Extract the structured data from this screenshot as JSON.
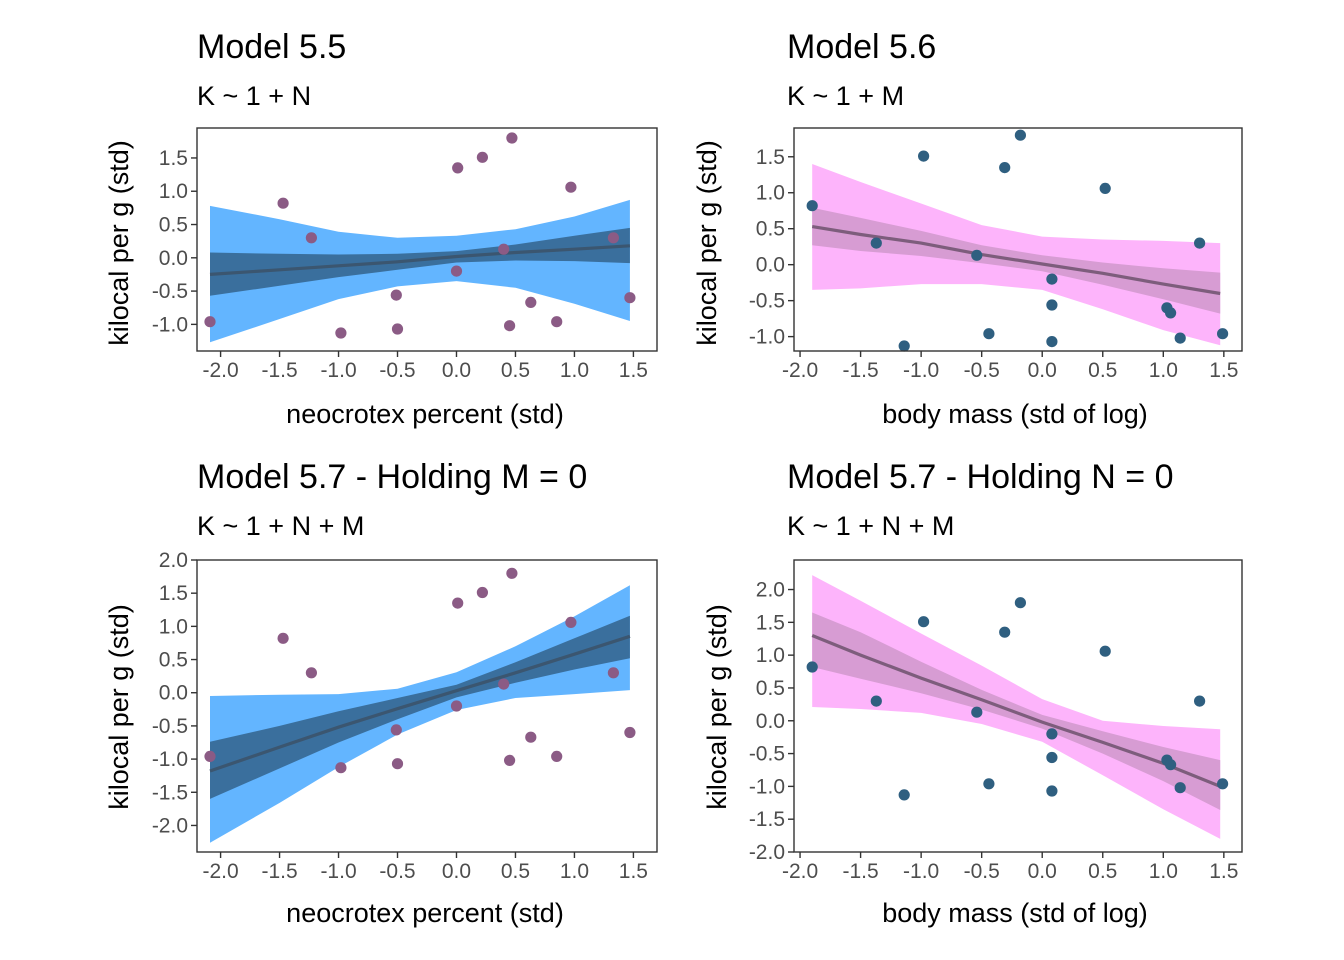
{
  "colors": {
    "blue_outer": "#63b5ff",
    "blue_inner": "#3a6f9d",
    "blue_line": "#3b5670",
    "purple_point": "#8b5b85",
    "pink_outer": "#fdb4fb",
    "pink_inner": "#d79cd3",
    "pink_line": "#7d5d7c",
    "teal_point": "#2f5f80"
  },
  "chart_data": [
    {
      "type": "line",
      "title": "Model 5.5",
      "subtitle": "K ~ 1 + N",
      "xlabel": "neocrotex percent (std)",
      "ylabel": "kilocal per g (std)",
      "xlim": [
        -2.2,
        1.7
      ],
      "ylim": [
        -1.4,
        1.95
      ],
      "xticks": [
        -2.0,
        -1.5,
        -1.0,
        -0.5,
        0.0,
        0.5,
        1.0,
        1.5
      ],
      "xtick_labels": [
        "-2.0",
        "-1.5",
        "-1.0",
        "-0.5",
        "0.0",
        "0.5",
        "1.0",
        "1.5"
      ],
      "yticks": [
        -1.0,
        -0.5,
        0.0,
        0.5,
        1.0,
        1.5
      ],
      "ytick_labels": [
        "-1.0",
        "-0.5",
        "0.0",
        "0.5",
        "1.0",
        "1.5"
      ],
      "theme": "blue",
      "fit": {
        "x": [
          -2.09,
          -1.5,
          -1.0,
          -0.5,
          0.0,
          0.5,
          1.0,
          1.47
        ],
        "mean": [
          -0.25,
          -0.18,
          -0.12,
          -0.06,
          0.02,
          0.08,
          0.13,
          0.18
        ],
        "inner_lo": [
          -0.57,
          -0.42,
          -0.29,
          -0.18,
          -0.07,
          -0.04,
          -0.05,
          -0.08
        ],
        "inner_hi": [
          0.08,
          0.06,
          0.05,
          0.06,
          0.1,
          0.2,
          0.33,
          0.45
        ],
        "outer_lo": [
          -1.27,
          -0.92,
          -0.62,
          -0.43,
          -0.35,
          -0.45,
          -0.69,
          -0.95
        ],
        "outer_hi": [
          0.78,
          0.58,
          0.39,
          0.3,
          0.33,
          0.43,
          0.62,
          0.87
        ]
      },
      "points": {
        "x": [
          -2.09,
          -1.47,
          -1.23,
          -0.98,
          -0.51,
          -0.5,
          0.0,
          0.01,
          0.22,
          0.4,
          0.45,
          0.47,
          0.63,
          0.85,
          0.97,
          1.33,
          1.47
        ],
        "y": [
          -0.96,
          0.82,
          0.3,
          -1.13,
          -0.56,
          -1.07,
          -0.2,
          1.35,
          1.51,
          0.13,
          -1.02,
          1.8,
          -0.67,
          -0.96,
          1.06,
          0.3,
          -0.6
        ]
      }
    },
    {
      "type": "line",
      "title": "Model 5.6",
      "subtitle": "K ~ 1 + M",
      "xlabel": "body mass (std of log)",
      "ylabel": "kilocal per g (std)",
      "xlim": [
        -2.05,
        1.65
      ],
      "ylim": [
        -1.2,
        1.9
      ],
      "xticks": [
        -2.0,
        -1.5,
        -1.0,
        -0.5,
        0.0,
        0.5,
        1.0,
        1.5
      ],
      "xtick_labels": [
        "-2.0",
        "-1.5",
        "-1.0",
        "-0.5",
        "0.0",
        "0.5",
        "1.0",
        "1.5"
      ],
      "yticks": [
        -1.0,
        -0.5,
        0.0,
        0.5,
        1.0,
        1.5
      ],
      "ytick_labels": [
        "-1.0",
        "-0.5",
        "0.0",
        "0.5",
        "1.0",
        "1.5"
      ],
      "theme": "pink",
      "fit": {
        "x": [
          -1.9,
          -1.5,
          -1.0,
          -0.5,
          0.0,
          0.5,
          1.0,
          1.47
        ],
        "mean": [
          0.53,
          0.42,
          0.3,
          0.14,
          0.01,
          -0.12,
          -0.27,
          -0.4
        ],
        "inner_lo": [
          0.27,
          0.19,
          0.12,
          0.02,
          -0.09,
          -0.28,
          -0.48,
          -0.68
        ],
        "inner_hi": [
          0.79,
          0.65,
          0.47,
          0.27,
          0.13,
          0.03,
          -0.05,
          -0.11
        ],
        "outer_lo": [
          -0.35,
          -0.33,
          -0.27,
          -0.27,
          -0.35,
          -0.62,
          -0.91,
          -1.12
        ],
        "outer_hi": [
          1.4,
          1.15,
          0.85,
          0.55,
          0.39,
          0.35,
          0.33,
          0.3
        ]
      },
      "points": {
        "x": [
          -1.9,
          -1.37,
          -1.14,
          -0.98,
          -0.54,
          -0.44,
          -0.31,
          -0.18,
          0.08,
          0.08,
          0.08,
          0.52,
          1.03,
          1.06,
          1.14,
          1.3,
          1.49
        ],
        "y": [
          0.82,
          0.3,
          -1.13,
          1.51,
          0.13,
          -0.96,
          1.35,
          1.8,
          -0.2,
          -0.56,
          -1.07,
          1.06,
          -0.6,
          -0.67,
          -1.02,
          0.3,
          -0.96
        ]
      }
    },
    {
      "type": "line",
      "title": "Model 5.7 - Holding M = 0",
      "subtitle": "K ~ 1 + N + M",
      "xlabel": "neocrotex percent (std)",
      "ylabel": "kilocal per g (std)",
      "xlim": [
        -2.2,
        1.7
      ],
      "ylim": [
        -2.4,
        2.0
      ],
      "xticks": [
        -2.0,
        -1.5,
        -1.0,
        -0.5,
        0.0,
        0.5,
        1.0,
        1.5
      ],
      "xtick_labels": [
        "-2.0",
        "-1.5",
        "-1.0",
        "-0.5",
        "0.0",
        "0.5",
        "1.0",
        "1.5"
      ],
      "yticks": [
        -2.0,
        -1.5,
        -1.0,
        -0.5,
        0.0,
        0.5,
        1.0,
        1.5,
        2.0
      ],
      "ytick_labels": [
        "-2.0",
        "-1.5",
        "-1.0",
        "-0.5",
        "0.0",
        "0.5",
        "1.0",
        "1.5",
        "2.0"
      ],
      "theme": "blue",
      "fit": {
        "x": [
          -2.09,
          -1.5,
          -1.0,
          -0.5,
          0.0,
          0.5,
          1.0,
          1.47
        ],
        "mean": [
          -1.18,
          -0.82,
          -0.52,
          -0.24,
          0.03,
          0.3,
          0.58,
          0.85
        ],
        "inner_lo": [
          -1.6,
          -1.14,
          -0.75,
          -0.4,
          -0.07,
          0.15,
          0.35,
          0.52
        ],
        "inner_hi": [
          -0.74,
          -0.5,
          -0.28,
          -0.08,
          0.12,
          0.46,
          0.82,
          1.16
        ],
        "outer_lo": [
          -2.26,
          -1.66,
          -1.12,
          -0.63,
          -0.26,
          -0.08,
          -0.02,
          0.04
        ],
        "outer_hi": [
          -0.05,
          -0.03,
          -0.02,
          0.06,
          0.31,
          0.7,
          1.15,
          1.62
        ]
      },
      "points": {
        "x": [
          -2.09,
          -1.47,
          -1.23,
          -0.98,
          -0.51,
          -0.5,
          0.0,
          0.01,
          0.22,
          0.4,
          0.45,
          0.47,
          0.63,
          0.85,
          0.97,
          1.33,
          1.47
        ],
        "y": [
          -0.96,
          0.82,
          0.3,
          -1.13,
          -0.56,
          -1.07,
          -0.2,
          1.35,
          1.51,
          0.13,
          -1.02,
          1.8,
          -0.67,
          -0.96,
          1.06,
          0.3,
          -0.6
        ]
      }
    },
    {
      "type": "line",
      "title": "Model 5.7 - Holding N = 0",
      "subtitle": "K ~ 1 + N + M",
      "xlabel": "body mass (std of log)",
      "ylabel": "kilocal per g (std)",
      "xlim": [
        -2.05,
        1.65
      ],
      "ylim": [
        -2.0,
        2.45
      ],
      "xticks": [
        -2.0,
        -1.5,
        -1.0,
        -0.5,
        0.0,
        0.5,
        1.0,
        1.5
      ],
      "xtick_labels": [
        "-2.0",
        "-1.5",
        "-1.0",
        "-0.5",
        "0.0",
        "0.5",
        "1.0",
        "1.5"
      ],
      "yticks": [
        -2.0,
        -1.5,
        -1.0,
        -0.5,
        0.0,
        0.5,
        1.0,
        1.5,
        2.0
      ],
      "ytick_labels": [
        "-2.0",
        "-1.5",
        "-1.0",
        "-0.5",
        "0.0",
        "0.5",
        "1.0",
        "1.5",
        "2.0"
      ],
      "theme": "pink",
      "fit": {
        "x": [
          -1.9,
          -1.5,
          -1.0,
          -0.5,
          0.0,
          0.5,
          1.0,
          1.47
        ],
        "mean": [
          1.3,
          1.0,
          0.65,
          0.32,
          -0.02,
          -0.33,
          -0.65,
          -1.0
        ],
        "inner_lo": [
          0.82,
          0.64,
          0.42,
          0.17,
          -0.12,
          -0.5,
          -0.92,
          -1.36
        ],
        "inner_hi": [
          1.65,
          1.35,
          0.9,
          0.47,
          0.09,
          -0.16,
          -0.4,
          -0.6
        ],
        "outer_lo": [
          0.21,
          0.18,
          0.12,
          -0.05,
          -0.32,
          -0.83,
          -1.35,
          -1.8
        ],
        "outer_hi": [
          2.22,
          1.83,
          1.33,
          0.84,
          0.33,
          0.0,
          -0.08,
          -0.13
        ]
      },
      "points": {
        "x": [
          -1.9,
          -1.37,
          -1.14,
          -0.98,
          -0.54,
          -0.44,
          -0.31,
          -0.18,
          0.08,
          0.08,
          0.08,
          0.52,
          1.03,
          1.06,
          1.14,
          1.3,
          1.49
        ],
        "y": [
          0.82,
          0.3,
          -1.13,
          1.51,
          0.13,
          -0.96,
          1.35,
          1.8,
          -0.2,
          -0.56,
          -1.07,
          1.06,
          -0.6,
          -0.67,
          -1.02,
          0.3,
          -0.96
        ]
      }
    }
  ]
}
